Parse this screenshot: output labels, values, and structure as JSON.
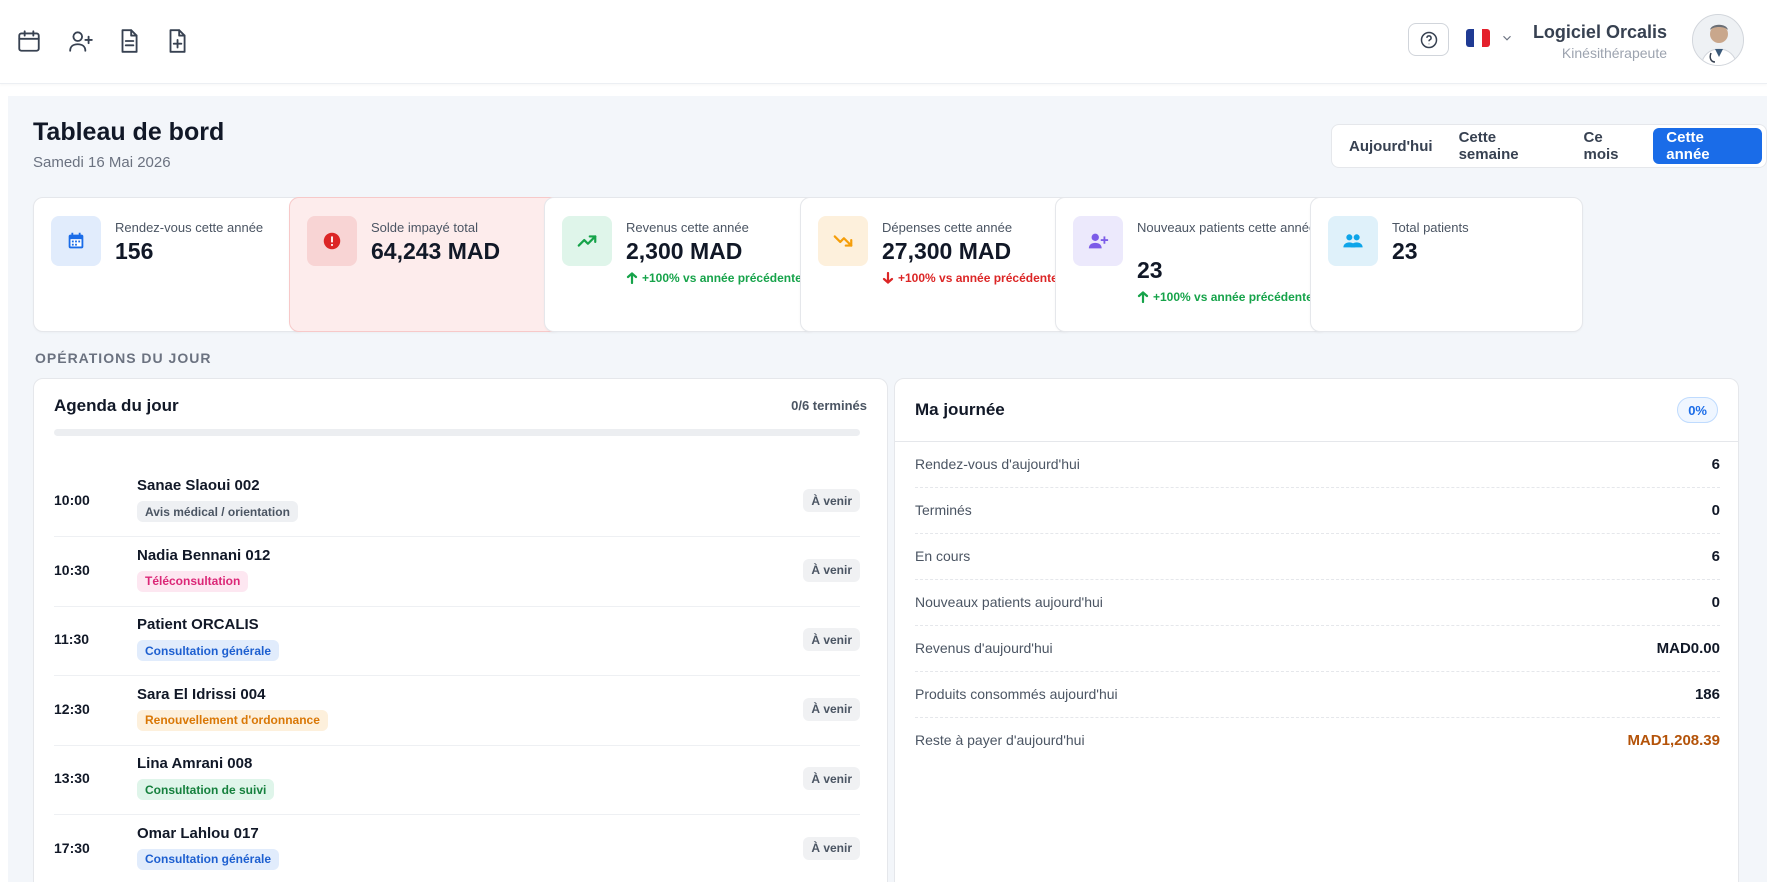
{
  "header": {
    "icons": [
      "calendar-icon",
      "user-plus-icon",
      "document-icon",
      "file-plus-icon"
    ],
    "user_name": "Logiciel Orcalis",
    "user_role": "Kinésithérapeute",
    "lang_flag_colors": [
      "#1f3a93",
      "#ffffff",
      "#e4202c"
    ]
  },
  "page": {
    "title": "Tableau de bord",
    "date": "Samedi 16 Mai 2026"
  },
  "periods": [
    {
      "label": "Aujourd'hui",
      "active": false
    },
    {
      "label": "Cette semaine",
      "active": false
    },
    {
      "label": "Ce mois",
      "active": false
    },
    {
      "label": "Cette année",
      "active": true
    }
  ],
  "stats": [
    {
      "label": "Rendez-vous cette année",
      "value": "156",
      "trend": "",
      "trend_dir": "",
      "icon": "calendar-icon",
      "icon_bg": "#e1ecfc",
      "icon_color": "#1a6ce8"
    },
    {
      "label": "Solde impayé total",
      "value": "64,243 MAD",
      "trend": "",
      "trend_dir": "",
      "icon": "alert-icon",
      "icon_bg": "#f8d4d4",
      "icon_color": "#dc2626"
    },
    {
      "label": "Revenus cette année",
      "value": "2,300 MAD",
      "trend": "+100% vs année précédente",
      "trend_dir": "up",
      "icon": "trending-up-icon",
      "icon_bg": "#dff5ea",
      "icon_color": "#16a34a"
    },
    {
      "label": "Dépenses cette année",
      "value": "27,300 MAD",
      "trend": "+100% vs année précédente",
      "trend_dir": "down",
      "icon": "trending-down-icon",
      "icon_bg": "#fdf0dc",
      "icon_color": "#f59e0b"
    },
    {
      "label": "Nouveaux patients cette année",
      "value": "23",
      "trend": "+100% vs année précédente",
      "trend_dir": "up",
      "icon": "user-plus-icon",
      "icon_bg": "#ece9fc",
      "icon_color": "#7c5ce8"
    },
    {
      "label": "Total patients",
      "value": "23",
      "trend": "",
      "trend_dir": "",
      "icon": "users-icon",
      "icon_bg": "#dff1fa",
      "icon_color": "#0ea5e9"
    }
  ],
  "section_title": "OPÉRATIONS DU JOUR",
  "agenda": {
    "title": "Agenda du jour",
    "count": "0/6 terminés",
    "progress": 0,
    "items": [
      {
        "time": "10:00",
        "name": "Sanae Slaoui 002",
        "tag": "Avis médical / orientation",
        "tag_bg": "#eef0f3",
        "tag_color": "#4b5563",
        "status": "À venir"
      },
      {
        "time": "10:30",
        "name": "Nadia Bennani 012",
        "tag": "Téléconsultation",
        "tag_bg": "#fde7f1",
        "tag_color": "#db2777",
        "status": "À venir"
      },
      {
        "time": "11:30",
        "name": "Patient ORCALIS",
        "tag": "Consultation générale",
        "tag_bg": "#e1ecfc",
        "tag_color": "#1d5fd0",
        "status": "À venir"
      },
      {
        "time": "12:30",
        "name": "Sara El Idrissi 004",
        "tag": "Renouvellement d'ordonnance",
        "tag_bg": "#fdf0dc",
        "tag_color": "#d97706",
        "status": "À venir"
      },
      {
        "time": "13:30",
        "name": "Lina Amrani 008",
        "tag": "Consultation de suivi",
        "tag_bg": "#dff5ea",
        "tag_color": "#15803d",
        "status": "À venir"
      },
      {
        "time": "17:30",
        "name": "Omar Lahlou 017",
        "tag": "Consultation générale",
        "tag_bg": "#e1ecfc",
        "tag_color": "#1d5fd0",
        "status": "À venir"
      }
    ]
  },
  "day": {
    "title": "Ma journée",
    "badge": "0%",
    "rows": [
      {
        "label": "Rendez-vous d'aujourd'hui",
        "value": "6",
        "color": "#111827"
      },
      {
        "label": "Terminés",
        "value": "0",
        "color": "#111827"
      },
      {
        "label": "En cours",
        "value": "6",
        "color": "#111827"
      },
      {
        "label": "Nouveaux patients aujourd'hui",
        "value": "0",
        "color": "#111827"
      },
      {
        "label": "Revenus d'aujourd'hui",
        "value": "MAD0.00",
        "color": "#111827"
      },
      {
        "label": "Produits consommés aujourd'hui",
        "value": "186",
        "color": "#111827"
      },
      {
        "label": "Reste à payer d'aujourd'hui",
        "value": "MAD1,208.39",
        "color": "#b45309"
      }
    ]
  }
}
